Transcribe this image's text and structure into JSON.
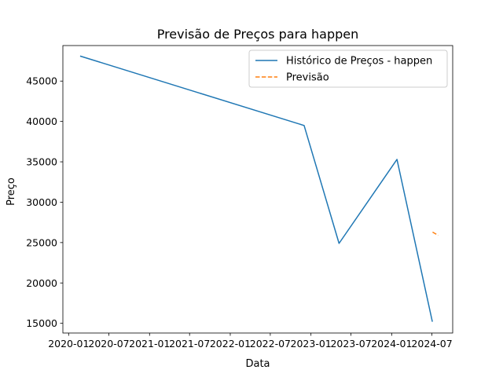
{
  "chart_data": {
    "type": "line",
    "title": "Previsão de Preços para happen",
    "xlabel": "Data",
    "ylabel": "Preço",
    "x_ticks": [
      "2020-01",
      "2020-07",
      "2021-01",
      "2021-07",
      "2022-01",
      "2022-07",
      "2023-01",
      "2023-07",
      "2024-01",
      "2024-07"
    ],
    "y_ticks": [
      15000,
      20000,
      25000,
      30000,
      35000,
      40000,
      45000
    ],
    "y_tick_labels": [
      "15000",
      "20000",
      "25000",
      "30000",
      "35000",
      "40000",
      "45000"
    ],
    "ylim": [
      13800,
      49400
    ],
    "xlim": [
      "2019-12-06",
      "2024-10-03"
    ],
    "legend_position": "top-right",
    "series": [
      {
        "name": "Histórico de Preços - happen",
        "color": "#1f77b4",
        "style": "solid",
        "x": [
          "2020-02-22",
          "2022-12-01",
          "2023-05-08",
          "2024-01-25",
          "2024-07-03"
        ],
        "y": [
          48100,
          39500,
          24900,
          35300,
          15200
        ]
      },
      {
        "name": "Previsão",
        "color": "#ff7f0e",
        "style": "dashed",
        "x": [
          "2024-07-04",
          "2024-07-29"
        ],
        "y": [
          26300,
          25900
        ]
      }
    ]
  }
}
